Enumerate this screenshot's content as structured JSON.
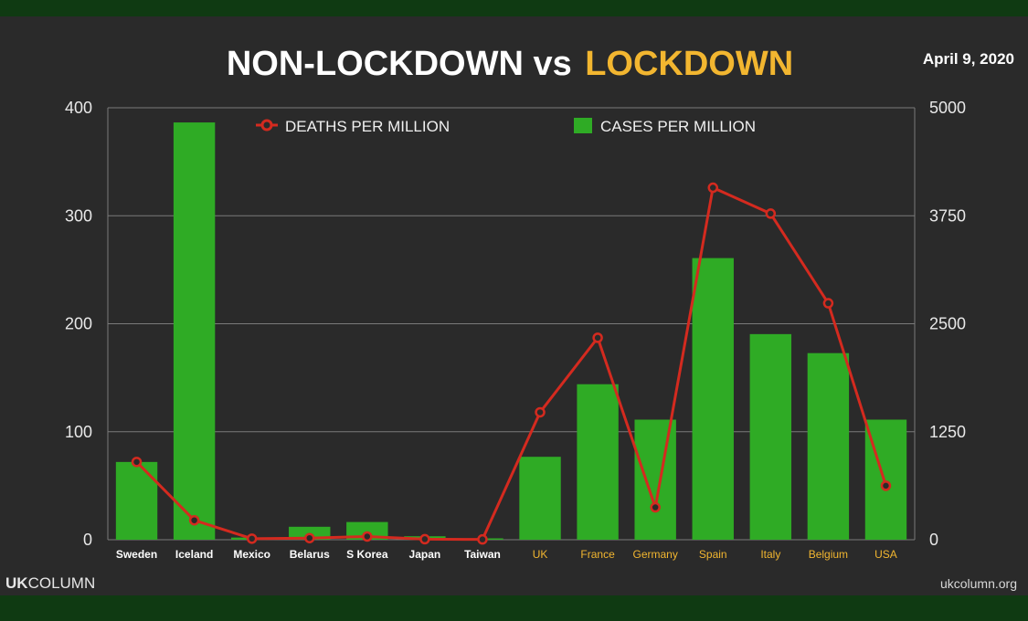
{
  "header": {
    "title_part1": "NON-LOCKDOWN vs",
    "title_part2": "LOCKDOWN",
    "date": "April 9, 2020"
  },
  "footer": {
    "brand_bold": "UK",
    "brand_rest": "COLUMN",
    "website": "ukcolumn.org"
  },
  "colors": {
    "bar": "#2fab25",
    "line": "#d42a1f",
    "accent": "#f2b630",
    "background": "#2a2a2a"
  },
  "chart_data": {
    "type": "bar",
    "title": "NON-LOCKDOWN vs LOCKDOWN",
    "categories": [
      "Sweden",
      "Iceland",
      "Mexico",
      "Belarus",
      "S Korea",
      "Japan",
      "Taiwan",
      "UK",
      "France",
      "Germany",
      "Spain",
      "Italy",
      "Belgium",
      "USA"
    ],
    "lockdown_categories": [
      "UK",
      "France",
      "Germany",
      "Spain",
      "Italy",
      "Belgium",
      "USA"
    ],
    "series": [
      {
        "name": "CASES PER MILLION",
        "type": "bar",
        "axis": "right",
        "values": [
          900,
          4830,
          25,
          150,
          205,
          40,
          16,
          960,
          1800,
          1390,
          3260,
          2380,
          2160,
          1390
        ]
      },
      {
        "name": "DEATHS PER MILLION",
        "type": "line",
        "axis": "left",
        "values": [
          72,
          18,
          1,
          1.5,
          3,
          0.5,
          0.3,
          118,
          187,
          30,
          326,
          302,
          219,
          50
        ]
      }
    ],
    "y_left": {
      "min": 0,
      "max": 400,
      "ticks": [
        "0",
        "100",
        "200",
        "300",
        "400"
      ]
    },
    "y_right": {
      "min": 0,
      "max": 5000,
      "ticks": [
        "0",
        "1250",
        "2500",
        "3750",
        "5000"
      ]
    },
    "grid": true,
    "legend_position": "top-center"
  }
}
